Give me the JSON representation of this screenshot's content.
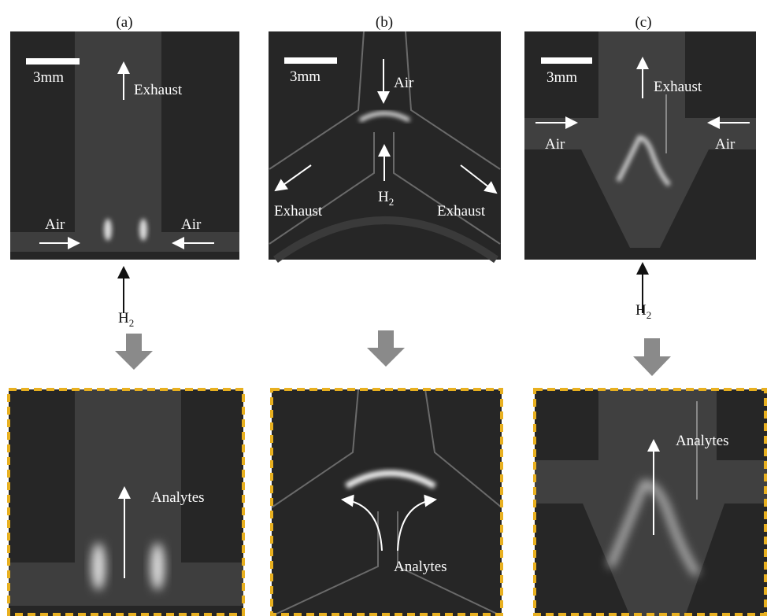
{
  "panels": [
    {
      "label": "(a)",
      "scale_bar": "3mm",
      "exhaust": "Exhaust",
      "air_left": "Air",
      "air_right": "Air",
      "h2": "H",
      "h2_sub": "2",
      "zoom_annotation": "Analytes"
    },
    {
      "label": "(b)",
      "scale_bar": "3mm",
      "air": "Air",
      "h2": "H",
      "h2_sub": "2",
      "exhaust_left": "Exhaust",
      "exhaust_right": "Exhaust",
      "zoom_annotation": "Analytes"
    },
    {
      "label": "(c)",
      "scale_bar": "3mm",
      "exhaust": "Exhaust",
      "air_left": "Air",
      "air_right": "Air",
      "h2": "H",
      "h2_sub": "2",
      "zoom_annotation": "Analytes"
    }
  ]
}
